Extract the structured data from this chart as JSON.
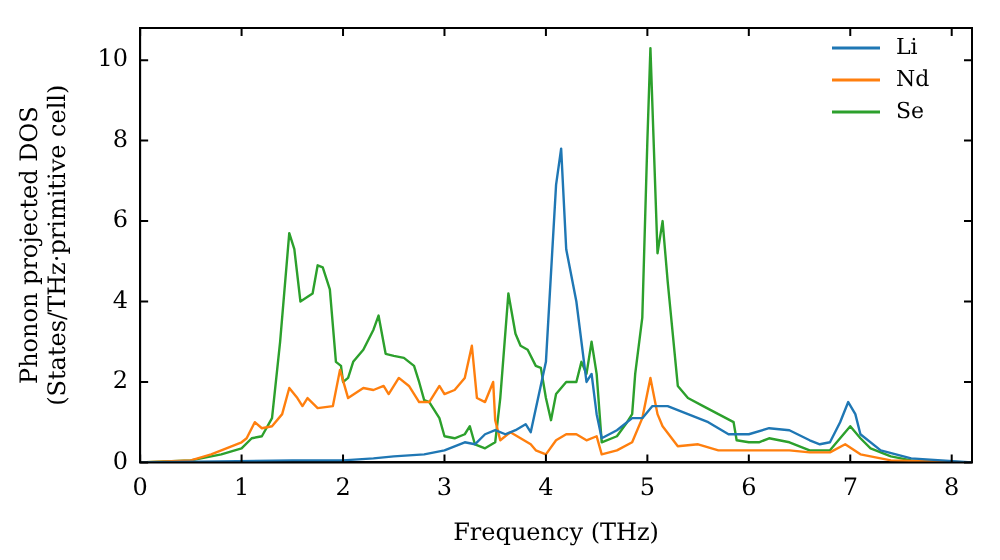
{
  "chart_data": {
    "type": "line",
    "xlabel": "Frequency (THz)",
    "ylabel": "Phonon projected DOS\n(States/THz·primitive cell)",
    "xlim": [
      0,
      8.2
    ],
    "xticks": [
      0,
      1,
      2,
      3,
      4,
      5,
      6,
      7,
      8
    ],
    "ylim": [
      0,
      10.8
    ],
    "yticks": [
      0,
      2,
      4,
      6,
      8,
      10
    ],
    "legend": "top right",
    "marker": "none",
    "line_style": "solid",
    "series": [
      {
        "name": "Li",
        "color": "#1f77b4",
        "x": [
          0,
          1.5,
          2.0,
          2.3,
          2.5,
          2.8,
          3.0,
          3.2,
          3.3,
          3.4,
          3.5,
          3.6,
          3.7,
          3.8,
          3.85,
          4.0,
          4.1,
          4.15,
          4.2,
          4.3,
          4.4,
          4.45,
          4.5,
          4.55,
          4.7,
          4.85,
          4.95,
          5.05,
          5.2,
          5.4,
          5.6,
          5.8,
          6.0,
          6.2,
          6.4,
          6.6,
          6.7,
          6.8,
          6.9,
          6.98,
          7.05,
          7.1,
          7.3,
          7.6,
          8.2
        ],
        "values": [
          0,
          0.05,
          0.05,
          0.1,
          0.15,
          0.2,
          0.3,
          0.5,
          0.45,
          0.7,
          0.8,
          0.7,
          0.8,
          0.95,
          0.75,
          2.5,
          6.9,
          7.8,
          5.3,
          4.0,
          2.0,
          2.2,
          1.2,
          0.6,
          0.8,
          1.1,
          1.1,
          1.4,
          1.4,
          1.2,
          1.0,
          0.7,
          0.7,
          0.85,
          0.8,
          0.55,
          0.45,
          0.5,
          1.0,
          1.5,
          1.2,
          0.7,
          0.3,
          0.1,
          0
        ]
      },
      {
        "name": "Nd",
        "color": "#ff7f0e",
        "x": [
          0,
          0.5,
          0.7,
          0.9,
          1.0,
          1.05,
          1.13,
          1.2,
          1.3,
          1.4,
          1.47,
          1.55,
          1.6,
          1.65,
          1.75,
          1.9,
          1.97,
          2.05,
          2.2,
          2.3,
          2.4,
          2.45,
          2.55,
          2.65,
          2.75,
          2.85,
          2.95,
          3.0,
          3.1,
          3.2,
          3.27,
          3.32,
          3.4,
          3.48,
          3.5,
          3.55,
          3.65,
          3.75,
          3.85,
          3.9,
          4.0,
          4.1,
          4.2,
          4.3,
          4.4,
          4.5,
          4.55,
          4.7,
          4.85,
          4.95,
          5.03,
          5.1,
          5.15,
          5.3,
          5.5,
          5.7,
          5.9,
          6.1,
          6.4,
          6.6,
          6.8,
          6.95,
          7.1,
          7.4,
          8.2
        ],
        "values": [
          0,
          0.05,
          0.2,
          0.4,
          0.5,
          0.6,
          1.0,
          0.85,
          0.9,
          1.2,
          1.85,
          1.6,
          1.4,
          1.6,
          1.35,
          1.4,
          2.3,
          1.6,
          1.85,
          1.8,
          1.9,
          1.7,
          2.1,
          1.9,
          1.5,
          1.5,
          1.9,
          1.7,
          1.8,
          2.1,
          2.9,
          1.6,
          1.5,
          2.0,
          1.05,
          0.55,
          0.75,
          0.6,
          0.45,
          0.3,
          0.2,
          0.55,
          0.7,
          0.7,
          0.55,
          0.65,
          0.2,
          0.3,
          0.5,
          1.1,
          2.1,
          1.2,
          0.9,
          0.4,
          0.45,
          0.3,
          0.3,
          0.3,
          0.3,
          0.25,
          0.25,
          0.45,
          0.2,
          0.05,
          0
        ]
      },
      {
        "name": "Se",
        "color": "#2ca02c",
        "x": [
          0,
          0.5,
          0.8,
          1.0,
          1.1,
          1.2,
          1.3,
          1.38,
          1.47,
          1.52,
          1.58,
          1.7,
          1.75,
          1.8,
          1.87,
          1.93,
          1.98,
          2.0,
          2.05,
          2.1,
          2.2,
          2.3,
          2.35,
          2.42,
          2.5,
          2.6,
          2.7,
          2.75,
          2.8,
          2.85,
          2.95,
          3.0,
          3.1,
          3.2,
          3.25,
          3.3,
          3.4,
          3.5,
          3.55,
          3.63,
          3.7,
          3.75,
          3.82,
          3.9,
          3.95,
          4.0,
          4.05,
          4.1,
          4.2,
          4.3,
          4.35,
          4.4,
          4.45,
          4.5,
          4.55,
          4.7,
          4.8,
          4.85,
          4.88,
          4.95,
          5.0,
          5.03,
          5.1,
          5.15,
          5.2,
          5.3,
          5.4,
          5.55,
          5.7,
          5.85,
          5.88,
          6.0,
          6.1,
          6.2,
          6.4,
          6.6,
          6.8,
          6.9,
          7.0,
          7.1,
          7.2,
          7.4,
          7.6,
          7.8,
          8.2
        ],
        "values": [
          0,
          0.05,
          0.2,
          0.35,
          0.6,
          0.65,
          1.1,
          3.0,
          5.7,
          5.3,
          4.0,
          4.2,
          4.9,
          4.85,
          4.3,
          2.5,
          2.4,
          2.0,
          2.1,
          2.5,
          2.8,
          3.3,
          3.65,
          2.7,
          2.65,
          2.6,
          2.4,
          2.0,
          1.55,
          1.5,
          1.1,
          0.65,
          0.6,
          0.7,
          0.9,
          0.45,
          0.35,
          0.5,
          1.6,
          4.2,
          3.2,
          2.9,
          2.8,
          2.4,
          2.35,
          1.6,
          1.05,
          1.7,
          2.0,
          2.0,
          2.5,
          2.2,
          3.0,
          2.2,
          0.5,
          0.65,
          1.0,
          1.2,
          2.2,
          3.6,
          8.0,
          10.3,
          5.2,
          6.0,
          4.5,
          1.9,
          1.6,
          1.4,
          1.2,
          1.0,
          0.55,
          0.5,
          0.5,
          0.6,
          0.5,
          0.3,
          0.3,
          0.6,
          0.9,
          0.6,
          0.35,
          0.15,
          0.05,
          0.02,
          0
        ]
      }
    ]
  }
}
